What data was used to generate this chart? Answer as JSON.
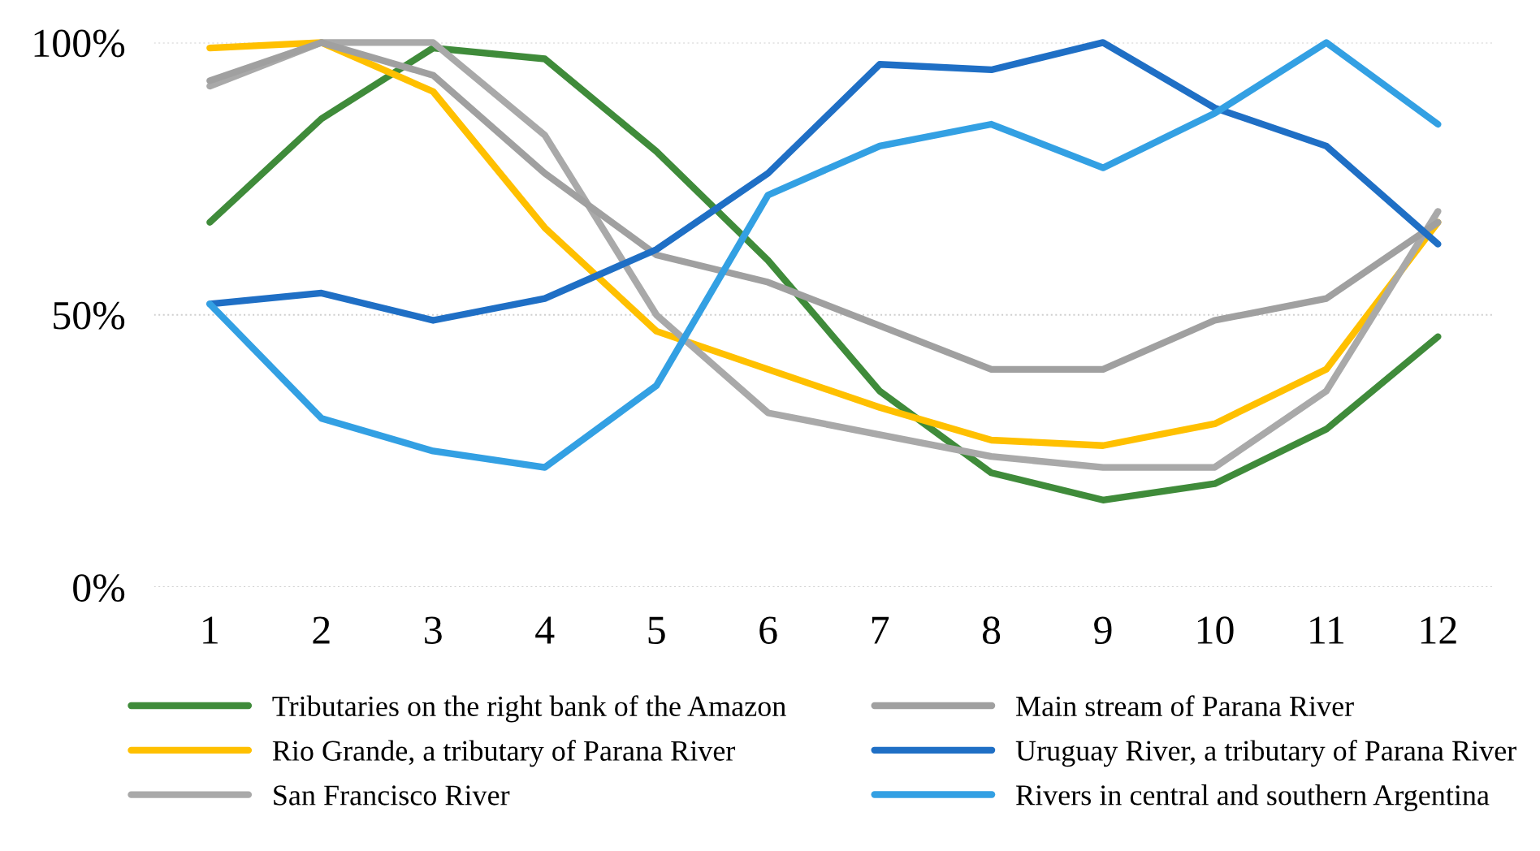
{
  "chart_data": {
    "type": "line",
    "categories": [
      "1",
      "2",
      "3",
      "4",
      "5",
      "6",
      "7",
      "8",
      "9",
      "10",
      "11",
      "12"
    ],
    "series": [
      {
        "name": "Tributaries on the right bank of the Amazon",
        "color": "#3f8b3a",
        "values": [
          67,
          86,
          99,
          97,
          80,
          60,
          36,
          21,
          16,
          19,
          29,
          46
        ]
      },
      {
        "name": "Rio Grande, a tributary of Parana River",
        "color": "#ffc000",
        "values": [
          99,
          100,
          91,
          66,
          47,
          40,
          33,
          27,
          26,
          30,
          40,
          67
        ]
      },
      {
        "name": "San Francisco River",
        "color": "#a9a9a9",
        "values": [
          92,
          100,
          100,
          83,
          50,
          32,
          28,
          24,
          22,
          22,
          36,
          69
        ]
      },
      {
        "name": "Main stream of Parana River",
        "color": "#a0a0a0",
        "values": [
          93,
          100,
          94,
          76,
          61,
          56,
          48,
          40,
          40,
          49,
          53,
          67
        ]
      },
      {
        "name": "Uruguay River, a tributary of Parana River",
        "color": "#1f6fc5",
        "values": [
          52,
          54,
          49,
          53,
          62,
          76,
          96,
          95,
          100,
          88,
          81,
          63
        ]
      },
      {
        "name": "Rivers in central and southern Argentina",
        "color": "#33a0e3",
        "values": [
          52,
          31,
          25,
          22,
          37,
          72,
          81,
          85,
          77,
          87,
          100,
          85
        ]
      }
    ],
    "ylim": [
      0,
      100
    ],
    "yticks": [
      {
        "value": 0,
        "label": "0%"
      },
      {
        "value": 50,
        "label": "50%"
      },
      {
        "value": 100,
        "label": "100%"
      }
    ],
    "grid": "y",
    "legend": "bottom",
    "marker": "none",
    "line_style": "solid"
  }
}
